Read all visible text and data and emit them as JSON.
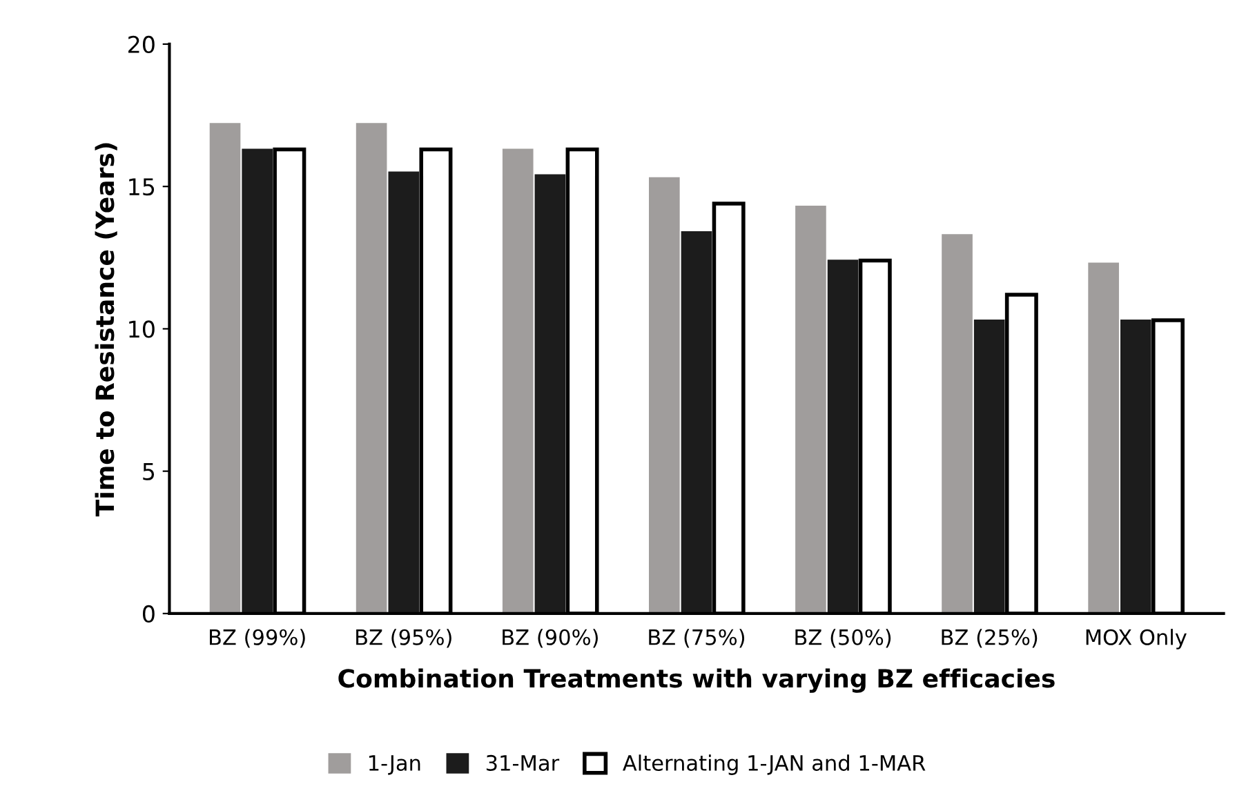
{
  "chart_data": {
    "type": "bar",
    "xlabel": "Combination Treatments with varying BZ efficacies",
    "ylabel": "Time to Resistance (Years)",
    "categories": [
      "BZ (99%)",
      "BZ (95%)",
      "BZ (90%)",
      "BZ (75%)",
      "BZ (50%)",
      "BZ (25%)",
      "MOX Only"
    ],
    "series": [
      {
        "name": "1-Jan",
        "color": "#a09d9c",
        "values": [
          17.2,
          17.2,
          16.3,
          15.3,
          14.3,
          13.3,
          12.3
        ]
      },
      {
        "name": "31-Mar",
        "color": "#1c1c1c",
        "values": [
          16.3,
          15.5,
          15.4,
          13.4,
          12.4,
          10.3,
          10.3
        ]
      },
      {
        "name": "Alternating 1-JAN and 1-MAR",
        "color": "#ffffff",
        "values": [
          16.3,
          16.3,
          16.3,
          14.4,
          12.4,
          11.2,
          10.3
        ]
      }
    ],
    "ylim": [
      0,
      20
    ],
    "yticks": [
      0,
      5,
      10,
      15,
      20
    ],
    "grid": false,
    "legend": "bottom"
  }
}
